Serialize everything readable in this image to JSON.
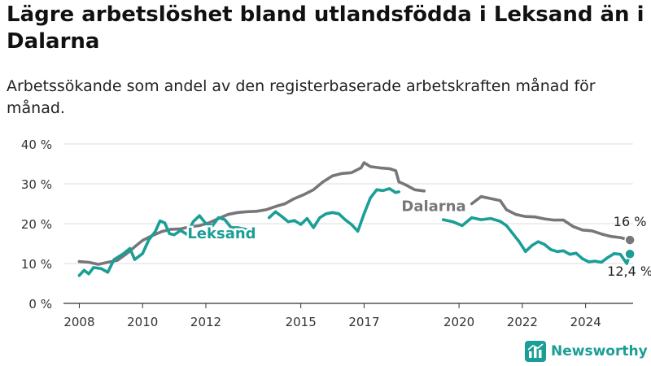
{
  "header": {
    "title": "Lägre arbetslöshet bland utlandsfödda i Leksand än i Dalarna",
    "subtitle": "Arbetssökande som andel av den registerbaserade arbetskraften månad för månad."
  },
  "brand": {
    "name": "Newsworthy",
    "icon": "bar-chart-icon",
    "color": "#1a9e96"
  },
  "colors": {
    "dalarna": "#77767b",
    "leksand": "#1a9e96",
    "grid": "#dddddd",
    "axis": "#333333"
  },
  "chart_data": {
    "type": "line",
    "title": "Lägre arbetslöshet bland utlandsfödda i Leksand än i Dalarna",
    "subtitle": "Arbetssökande som andel av den registerbaserade arbetskraften månad för månad.",
    "xlabel": "",
    "ylabel": "",
    "x_unit": "year",
    "xlim": [
      2007.5,
      2025.5
    ],
    "ylim": [
      0,
      40
    ],
    "x_ticks": [
      2008,
      2010,
      2012,
      2015,
      2017,
      2020,
      2022,
      2024
    ],
    "y_ticks": [
      0,
      10,
      20,
      30,
      40
    ],
    "y_tick_labels": [
      "0 %",
      "10 %",
      "20 %",
      "30 %",
      "40 %"
    ],
    "grid": true,
    "legend": "inline labels",
    "series": [
      {
        "name": "Dalarna",
        "color": "#77767b",
        "end_label": "16 %",
        "points": [
          [
            2008.0,
            10.5
          ],
          [
            2008.3,
            10.3
          ],
          [
            2008.6,
            9.8
          ],
          [
            2008.9,
            10.3
          ],
          [
            2009.2,
            10.8
          ],
          [
            2009.5,
            12.5
          ],
          [
            2009.8,
            14.5
          ],
          [
            2010.0,
            15.8
          ],
          [
            2010.3,
            17.0
          ],
          [
            2010.6,
            18.0
          ],
          [
            2010.9,
            18.6
          ],
          [
            2011.2,
            18.7
          ],
          [
            2011.5,
            19.2
          ],
          [
            2011.8,
            19.5
          ],
          [
            2012.1,
            20.2
          ],
          [
            2012.4,
            21.3
          ],
          [
            2012.7,
            22.3
          ],
          [
            2013.0,
            22.8
          ],
          [
            2013.3,
            23.0
          ],
          [
            2013.6,
            23.1
          ],
          [
            2013.9,
            23.5
          ],
          [
            2014.2,
            24.3
          ],
          [
            2014.5,
            25.0
          ],
          [
            2014.8,
            26.3
          ],
          [
            2015.1,
            27.3
          ],
          [
            2015.4,
            28.5
          ],
          [
            2015.7,
            30.5
          ],
          [
            2016.0,
            32.0
          ],
          [
            2016.3,
            32.6
          ],
          [
            2016.6,
            32.8
          ],
          [
            2016.9,
            34.0
          ],
          [
            2017.0,
            35.3
          ],
          [
            2017.2,
            34.3
          ],
          [
            2017.5,
            34.0
          ],
          [
            2017.8,
            33.8
          ],
          [
            2018.0,
            33.3
          ],
          [
            2018.1,
            30.5
          ],
          [
            2018.3,
            29.8
          ],
          [
            2018.6,
            28.5
          ],
          [
            2018.9,
            28.2
          ]
        ],
        "points_2": [
          [
            2020.4,
            25.0
          ],
          [
            2020.7,
            26.8
          ],
          [
            2021.0,
            26.3
          ],
          [
            2021.3,
            25.8
          ],
          [
            2021.5,
            23.5
          ],
          [
            2021.8,
            22.3
          ],
          [
            2022.1,
            21.8
          ],
          [
            2022.4,
            21.7
          ],
          [
            2022.7,
            21.2
          ],
          [
            2023.0,
            20.9
          ],
          [
            2023.3,
            20.9
          ],
          [
            2023.6,
            19.3
          ],
          [
            2023.9,
            18.4
          ],
          [
            2024.2,
            18.2
          ],
          [
            2024.5,
            17.4
          ],
          [
            2024.8,
            16.8
          ],
          [
            2025.1,
            16.5
          ],
          [
            2025.4,
            15.9
          ]
        ]
      },
      {
        "name": "Leksand",
        "color": "#1a9e96",
        "end_label": "12,4 %",
        "points": [
          [
            2008.0,
            7.0
          ],
          [
            2008.15,
            8.3
          ],
          [
            2008.3,
            7.4
          ],
          [
            2008.45,
            9.0
          ],
          [
            2008.7,
            8.7
          ],
          [
            2008.9,
            7.8
          ],
          [
            2009.1,
            11.0
          ],
          [
            2009.4,
            12.5
          ],
          [
            2009.6,
            13.8
          ],
          [
            2009.75,
            11.0
          ],
          [
            2010.0,
            12.5
          ],
          [
            2010.2,
            16.0
          ],
          [
            2010.4,
            18.0
          ],
          [
            2010.55,
            20.7
          ],
          [
            2010.7,
            20.2
          ],
          [
            2010.85,
            17.5
          ],
          [
            2011.0,
            17.2
          ],
          [
            2011.2,
            18.3
          ],
          [
            2011.4,
            17.3
          ],
          [
            2011.6,
            20.5
          ],
          [
            2011.8,
            22.0
          ],
          [
            2012.0,
            20.0
          ],
          [
            2012.2,
            19.4
          ],
          [
            2012.4,
            21.5
          ],
          [
            2012.6,
            21.0
          ],
          [
            2012.8,
            19.0
          ],
          [
            2013.0,
            19.0
          ],
          [
            2013.3,
            18.5
          ]
        ],
        "points_2": [
          [
            2014.0,
            21.5
          ],
          [
            2014.2,
            23.0
          ],
          [
            2014.4,
            21.8
          ],
          [
            2014.6,
            20.5
          ],
          [
            2014.8,
            20.8
          ],
          [
            2015.0,
            19.8
          ],
          [
            2015.2,
            21.3
          ],
          [
            2015.4,
            19.0
          ],
          [
            2015.6,
            21.5
          ],
          [
            2015.8,
            22.5
          ],
          [
            2016.0,
            22.8
          ],
          [
            2016.2,
            22.5
          ],
          [
            2016.4,
            21.0
          ],
          [
            2016.6,
            19.8
          ],
          [
            2016.8,
            18.1
          ],
          [
            2017.0,
            22.5
          ],
          [
            2017.2,
            26.5
          ],
          [
            2017.4,
            28.5
          ],
          [
            2017.6,
            28.3
          ],
          [
            2017.8,
            28.8
          ],
          [
            2018.0,
            27.8
          ],
          [
            2018.1,
            28.0
          ]
        ],
        "points_3": [
          [
            2019.5,
            21.0
          ],
          [
            2019.8,
            20.5
          ],
          [
            2020.1,
            19.5
          ],
          [
            2020.4,
            21.5
          ],
          [
            2020.7,
            21.0
          ],
          [
            2021.0,
            21.3
          ],
          [
            2021.3,
            20.6
          ],
          [
            2021.5,
            19.5
          ],
          [
            2021.7,
            17.5
          ],
          [
            2021.9,
            15.5
          ],
          [
            2022.1,
            13.0
          ],
          [
            2022.3,
            14.5
          ],
          [
            2022.5,
            15.5
          ],
          [
            2022.7,
            14.8
          ],
          [
            2022.9,
            13.5
          ],
          [
            2023.1,
            13.0
          ],
          [
            2023.3,
            13.2
          ],
          [
            2023.5,
            12.3
          ],
          [
            2023.7,
            12.6
          ],
          [
            2023.9,
            11.2
          ],
          [
            2024.1,
            10.4
          ],
          [
            2024.3,
            10.6
          ],
          [
            2024.5,
            10.3
          ],
          [
            2024.7,
            11.5
          ],
          [
            2024.9,
            12.5
          ],
          [
            2025.1,
            12.3
          ],
          [
            2025.3,
            10.0
          ],
          [
            2025.4,
            12.4
          ]
        ]
      }
    ],
    "annotations": [
      {
        "text": "Dalarna",
        "series": "Dalarna",
        "x": 2019.2,
        "y": 24.8
      },
      {
        "text": "Leksand",
        "series": "Leksand",
        "x": 2012.5,
        "y": 18.0
      }
    ]
  }
}
